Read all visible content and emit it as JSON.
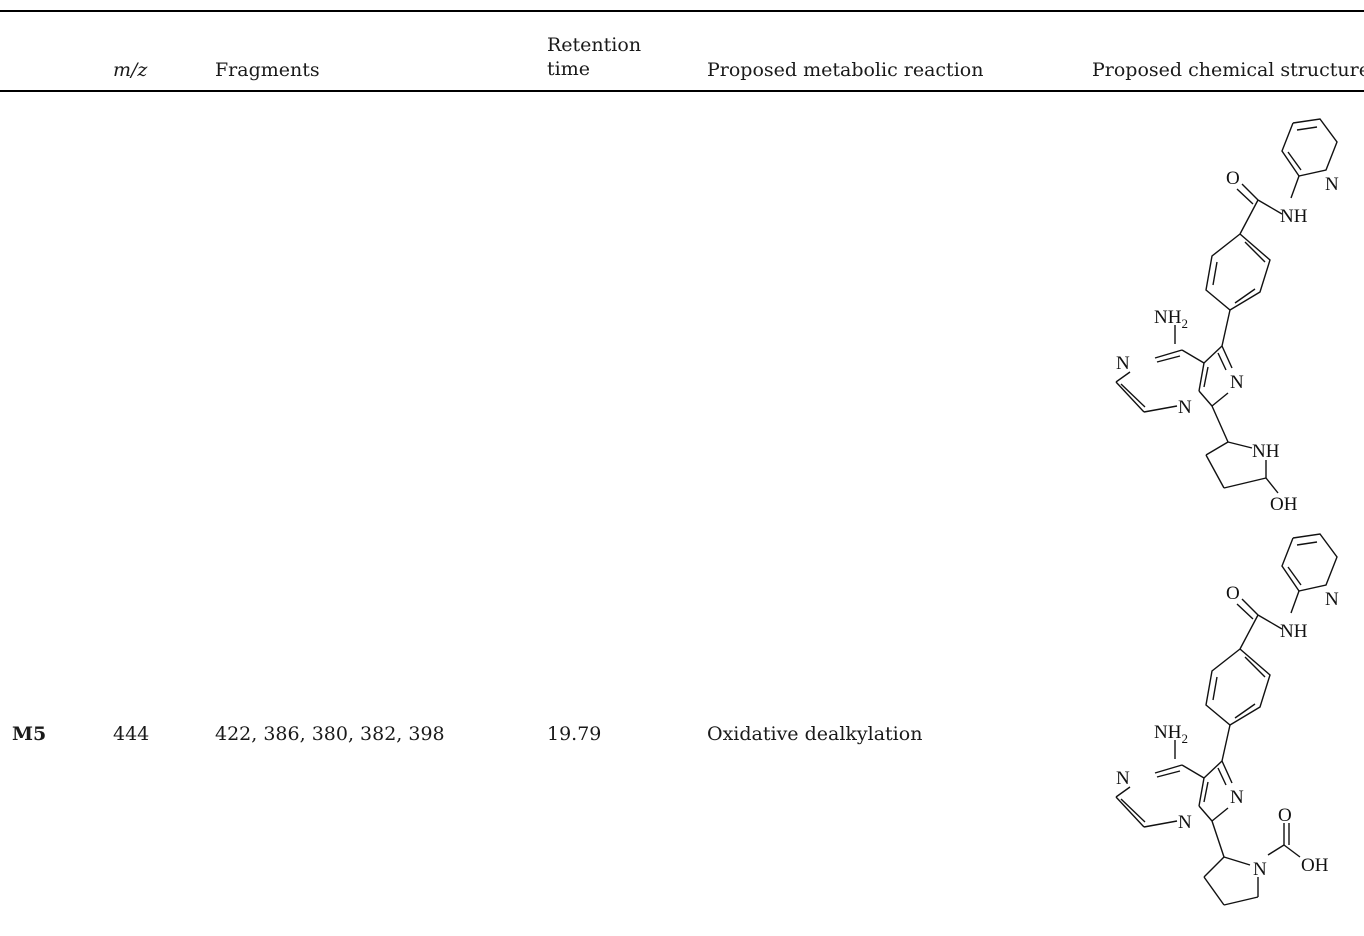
{
  "table": {
    "headers": {
      "mz": "m/z",
      "fragments": "Fragments",
      "retention_line1": "Retention",
      "retention_line2": "time",
      "reaction": "Proposed metabolic reaction",
      "structure": "Proposed chemical structure"
    },
    "row_m5": {
      "label": "M5",
      "mz": "444",
      "fragments": "422, 386, 380, 382, 398",
      "retention": "19.79",
      "reaction": "Oxidative dealkylation"
    }
  },
  "structure1": {
    "n_pyridine": "N",
    "o_amide": "O",
    "nh_amide": "NH",
    "nh2": "NH",
    "nh2_sub": "2",
    "n_pyrazine": "N",
    "n_fused": "N",
    "n_imidazole": "N",
    "nh_pyrrolidine": "NH",
    "oh": "OH"
  },
  "structure2": {
    "n_pyridine": "N",
    "o_amide": "O",
    "nh_amide": "NH",
    "nh2": "NH",
    "nh2_sub": "2",
    "n_pyrazine": "N",
    "n_fused": "N",
    "n_imidazole": "N",
    "n_pyrrolidine": "N",
    "o_carbonyl": "O",
    "oh": "OH"
  }
}
